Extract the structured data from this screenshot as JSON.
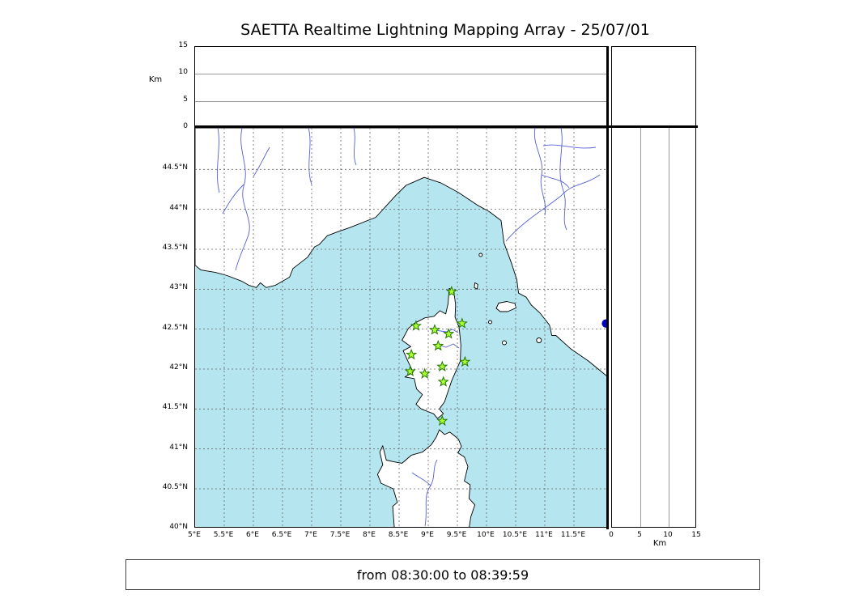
{
  "title": "SAETTA Realtime Lightning Mapping Array - 25/07/01",
  "footer": {
    "time_range": "from 08:30:00 to 08:39:59"
  },
  "map": {
    "alt_axis_label": "Km",
    "lon_ticks": [
      {
        "v": 5,
        "label": "5°E"
      },
      {
        "v": 5.5,
        "label": "5.5°E"
      },
      {
        "v": 6,
        "label": "6°E"
      },
      {
        "v": 6.5,
        "label": "6.5°E"
      },
      {
        "v": 7,
        "label": "7°E"
      },
      {
        "v": 7.5,
        "label": "7.5°E"
      },
      {
        "v": 8,
        "label": "8°E"
      },
      {
        "v": 8.5,
        "label": "8.5°E"
      },
      {
        "v": 9,
        "label": "9°E"
      },
      {
        "v": 9.5,
        "label": "9.5°E"
      },
      {
        "v": 10,
        "label": "10°E"
      },
      {
        "v": 10.5,
        "label": "10.5°E"
      },
      {
        "v": 11,
        "label": "11°E"
      },
      {
        "v": 11.5,
        "label": "11.5°E"
      }
    ],
    "lat_ticks": [
      {
        "v": 40,
        "label": "40°N"
      },
      {
        "v": 40.5,
        "label": "40.5°N"
      },
      {
        "v": 41,
        "label": "41°N"
      },
      {
        "v": 41.5,
        "label": "41.5°N"
      },
      {
        "v": 42,
        "label": "42°N"
      },
      {
        "v": 42.5,
        "label": "42.5°N"
      },
      {
        "v": 43,
        "label": "43°N"
      },
      {
        "v": 43.5,
        "label": "43.5°N"
      },
      {
        "v": 44,
        "label": "44°N"
      },
      {
        "v": 44.5,
        "label": "44.5°N"
      }
    ],
    "alt_ticks": [
      {
        "v": 0,
        "label": "0"
      },
      {
        "v": 5,
        "label": "5"
      },
      {
        "v": 10,
        "label": "10"
      },
      {
        "v": 15,
        "label": "15"
      }
    ],
    "alt_gridlines_km": [
      5,
      10
    ]
  },
  "chart_data": {
    "type": "scatter",
    "title": "SAETTA Realtime Lightning Mapping Array - 25/07/01",
    "time_window": {
      "from": "08:30:00",
      "to": "08:39:59"
    },
    "map_panel": {
      "lon_range_deg_e": [
        5.0,
        12.1
      ],
      "lat_range_deg_n": [
        40.0,
        45.0
      ],
      "grid_interval_deg": 0.5,
      "grid_style": "dashed",
      "region": "Corsica, Sardinia, Ligurian Sea, French and Italian coasts"
    },
    "altitude_panels": {
      "unit": "Km",
      "range_km": [
        0,
        15
      ],
      "ticks_km": [
        0,
        5,
        10,
        15
      ],
      "gridlines_km": [
        5,
        10
      ],
      "top_panel": "altitude vs longitude (no data plotted)",
      "right_panel": "altitude vs latitude (no data plotted)"
    },
    "stations_marker": "green star",
    "stations": [
      {
        "lon": 9.4,
        "lat": 42.97
      },
      {
        "lon": 8.79,
        "lat": 42.54
      },
      {
        "lon": 9.11,
        "lat": 42.49
      },
      {
        "lon": 9.58,
        "lat": 42.57
      },
      {
        "lon": 9.35,
        "lat": 42.44
      },
      {
        "lon": 9.17,
        "lat": 42.29
      },
      {
        "lon": 8.71,
        "lat": 42.18
      },
      {
        "lon": 9.63,
        "lat": 42.09
      },
      {
        "lon": 8.69,
        "lat": 41.97
      },
      {
        "lon": 8.94,
        "lat": 41.94
      },
      {
        "lon": 9.24,
        "lat": 42.03
      },
      {
        "lon": 9.26,
        "lat": 41.84
      },
      {
        "lon": 9.24,
        "lat": 41.35
      }
    ],
    "event_marker": {
      "lon": 12.05,
      "lat": 42.57,
      "shape": "filled circle",
      "color": "#0000cd"
    }
  },
  "colors": {
    "sea": "#b5e6ef",
    "land": "#ffffff",
    "coastline": "#000000",
    "river": "#5560d6",
    "grid": "#666666",
    "station_fill": "#aaff33",
    "station_edge": "#227700",
    "event": "#0000cd",
    "frame": "#000000"
  }
}
